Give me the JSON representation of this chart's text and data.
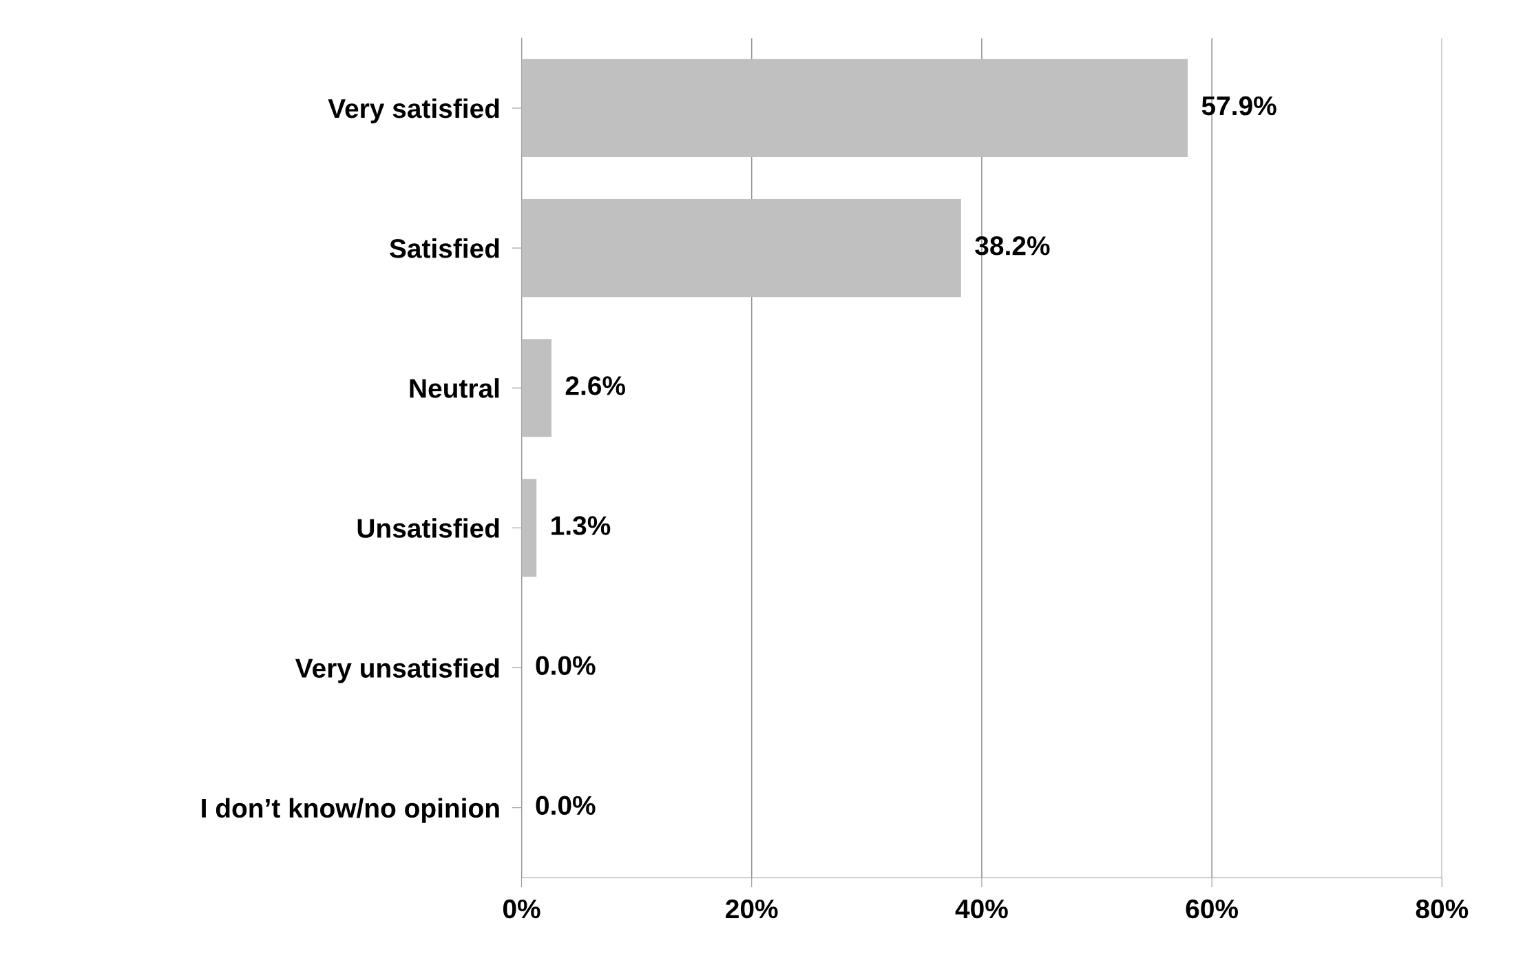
{
  "chart_data": {
    "type": "bar",
    "orientation": "horizontal",
    "categories": [
      "Very satisfied",
      "Satisfied",
      "Neutral",
      "Unsatisfied",
      "Very unsatisfied",
      "I don’t know/no opinion"
    ],
    "values": [
      57.9,
      38.2,
      2.6,
      1.3,
      0.0,
      0.0
    ],
    "value_labels": [
      "57.9%",
      "38.2%",
      "2.6%",
      "1.3%",
      "0.0%",
      "0.0%"
    ],
    "color": "#c0c0c0",
    "xlim": [
      0,
      80
    ],
    "xticks": [
      {
        "value": 0,
        "label": "0%"
      },
      {
        "value": 20,
        "label": "20%"
      },
      {
        "value": 40,
        "label": "40%"
      },
      {
        "value": 60,
        "label": "60%"
      },
      {
        "value": 80,
        "label": "80%"
      }
    ],
    "grid": "x",
    "legend": false
  }
}
